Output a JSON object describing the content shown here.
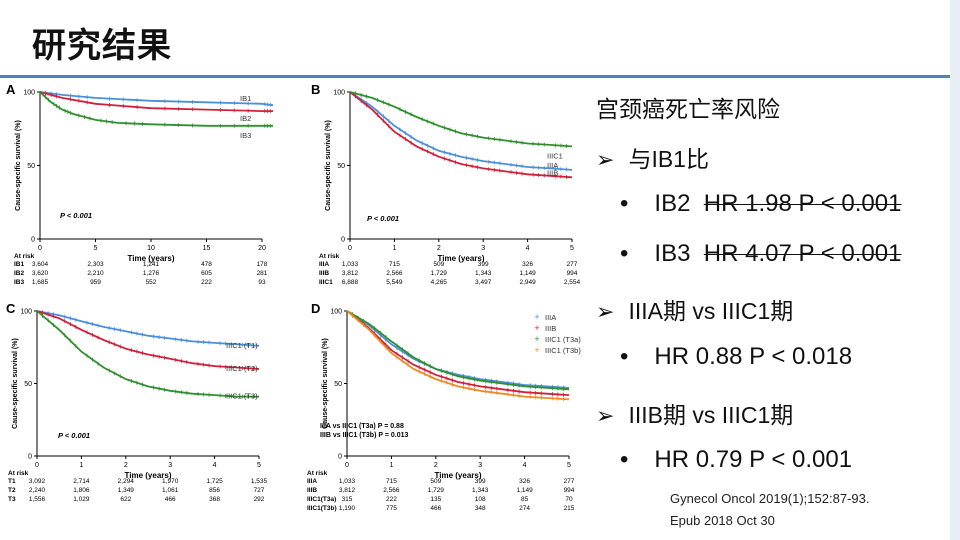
{
  "page_title": "研究结果",
  "right_text": {
    "heading": "宫颈癌死亡率风险",
    "comparisons": [
      {
        "label": "与IB1比",
        "items": [
          {
            "name": "IB2",
            "stat": "HR 1.98  P < 0.001"
          },
          {
            "name": "IB3",
            "stat": "HR 4.07  P < 0.001"
          }
        ]
      },
      {
        "label": "IIIA期 vs IIIC1期",
        "items": [
          {
            "name": "",
            "stat": "HR 0.88  P < 0.018"
          }
        ]
      },
      {
        "label": "IIIB期 vs IIIC1期",
        "items": [
          {
            "name": "",
            "stat": "HR 0.79  P < 0.001"
          }
        ]
      }
    ]
  },
  "citation": {
    "line1": "Gynecol Oncol 2019(1);152:87-93.",
    "line2": "Epub 2018  Oct 30"
  },
  "colors": {
    "blue": "#4a90d9",
    "red": "#d0213c",
    "green": "#2f8f2f",
    "orange": "#f08a24",
    "rule": "#4f81bd"
  },
  "chart_data": [
    {
      "panel": "A",
      "type": "line",
      "ylabel": "Cause-specific survival (%)",
      "xlabel": "Time (years)",
      "xlim": [
        0,
        20
      ],
      "ylim": [
        0,
        100
      ],
      "xticks": [
        0,
        5,
        10,
        15,
        20
      ],
      "yticks": [
        0,
        50,
        100
      ],
      "pvalue": "P < 0.001",
      "series": [
        {
          "name": "IB1",
          "color": "#4a90d9",
          "x": [
            0,
            2,
            5,
            10,
            15,
            20,
            21
          ],
          "y": [
            100,
            98,
            96,
            94,
            93,
            92,
            91
          ]
        },
        {
          "name": "IB2",
          "color": "#d0213c",
          "x": [
            0,
            2,
            5,
            10,
            15,
            20,
            21
          ],
          "y": [
            100,
            96,
            92,
            89,
            88,
            87,
            87
          ]
        },
        {
          "name": "IB3",
          "color": "#2f8f2f",
          "x": [
            0,
            1,
            2,
            3,
            5,
            7,
            10,
            15,
            20,
            21
          ],
          "y": [
            100,
            93,
            88,
            85,
            81,
            79,
            78,
            77,
            77,
            77
          ]
        }
      ],
      "at_risk": {
        "header": "At risk",
        "rows": [
          {
            "label": "IB1",
            "values": [
              "3,604",
              "2,303",
              "1,241",
              "478",
              "178"
            ]
          },
          {
            "label": "IB2",
            "values": [
              "3,620",
              "2,210",
              "1,276",
              "605",
              "281"
            ]
          },
          {
            "label": "IB3",
            "values": [
              "1,685",
              "959",
              "552",
              "222",
              "93"
            ]
          }
        ]
      }
    },
    {
      "panel": "B",
      "type": "line",
      "ylabel": "Cause-specific survival (%)",
      "xlabel": "Time (years)",
      "xlim": [
        0,
        5
      ],
      "ylim": [
        0,
        100
      ],
      "xticks": [
        0,
        1,
        2,
        3,
        4,
        5
      ],
      "yticks": [
        0,
        50,
        100
      ],
      "pvalue": "P < 0.001",
      "series": [
        {
          "name": "IIIA",
          "color": "#4a90d9",
          "x": [
            0,
            0.5,
            1,
            1.5,
            2,
            2.5,
            3,
            3.5,
            4,
            4.5,
            5
          ],
          "y": [
            100,
            90,
            77,
            67,
            60,
            56,
            53,
            51,
            49,
            48,
            47
          ]
        },
        {
          "name": "IIIB",
          "color": "#d0213c",
          "x": [
            0,
            0.5,
            1,
            1.5,
            2,
            2.5,
            3,
            3.5,
            4,
            4.5,
            5
          ],
          "y": [
            100,
            88,
            73,
            63,
            56,
            51,
            48,
            46,
            44,
            43,
            42
          ]
        },
        {
          "name": "IIIC1",
          "color": "#2f8f2f",
          "x": [
            0,
            0.5,
            1,
            1.5,
            2,
            2.5,
            3,
            3.5,
            4,
            4.5,
            5
          ],
          "y": [
            100,
            96,
            90,
            83,
            77,
            72,
            69,
            67,
            65,
            64,
            63
          ]
        }
      ],
      "at_risk": {
        "header": "At risk",
        "rows": [
          {
            "label": "IIIA",
            "values": [
              "1,033",
              "715",
              "509",
              "399",
              "326",
              "277"
            ]
          },
          {
            "label": "IIIB",
            "values": [
              "3,812",
              "2,566",
              "1,729",
              "1,343",
              "1,149",
              "994"
            ]
          },
          {
            "label": "IIIC1",
            "values": [
              "6,888",
              "5,549",
              "4,265",
              "3,497",
              "2,949",
              "2,554"
            ]
          }
        ]
      }
    },
    {
      "panel": "C",
      "type": "line",
      "ylabel": "Cause-specific survival (%)",
      "xlabel": "Time (years)",
      "xlim": [
        0,
        5
      ],
      "ylim": [
        0,
        100
      ],
      "xticks": [
        0,
        1,
        2,
        3,
        4,
        5
      ],
      "yticks": [
        0,
        50,
        100
      ],
      "pvalue": "P < 0.001",
      "series": [
        {
          "name": "IIIC1 (T1)",
          "color": "#4a90d9",
          "x": [
            0,
            0.5,
            1,
            1.5,
            2,
            2.5,
            3,
            3.5,
            4,
            4.5,
            5
          ],
          "y": [
            100,
            97,
            93,
            89,
            86,
            83,
            81,
            79,
            78,
            77,
            76
          ]
        },
        {
          "name": "IIIC1 (T2)",
          "color": "#d0213c",
          "x": [
            0,
            0.5,
            1,
            1.5,
            2,
            2.5,
            3,
            3.5,
            4,
            4.5,
            5
          ],
          "y": [
            100,
            95,
            87,
            80,
            74,
            70,
            67,
            64,
            62,
            61,
            60
          ]
        },
        {
          "name": "IIIC1 (T3)",
          "color": "#2f8f2f",
          "x": [
            0,
            0.5,
            1,
            1.5,
            2,
            2.5,
            3,
            3.5,
            4,
            4.5,
            5
          ],
          "y": [
            100,
            87,
            72,
            61,
            53,
            48,
            45,
            43,
            42,
            41,
            41
          ]
        }
      ],
      "at_risk": {
        "header": "At risk",
        "rows": [
          {
            "label": "T1",
            "values": [
              "3,092",
              "2,714",
              "2,294",
              "1,970",
              "1,725",
              "1,535"
            ]
          },
          {
            "label": "T2",
            "values": [
              "2,240",
              "1,806",
              "1,349",
              "1,061",
              "856",
              "727"
            ]
          },
          {
            "label": "T3",
            "values": [
              "1,556",
              "1,029",
              "622",
              "466",
              "368",
              "292"
            ]
          }
        ]
      }
    },
    {
      "panel": "D",
      "type": "line",
      "ylabel": "Cause-specific survival (%)",
      "xlabel": "Time (years)",
      "xlim": [
        0,
        5
      ],
      "ylim": [
        0,
        100
      ],
      "xticks": [
        0,
        1,
        2,
        3,
        4,
        5
      ],
      "yticks": [
        0,
        50,
        100
      ],
      "annotations": [
        "IIIA vs IIIC1 (T3a) P = 0.88",
        "IIIB vs IIIC1 (T3b) P = 0.013"
      ],
      "legend_position": "top-right",
      "series": [
        {
          "name": "IIIA",
          "color": "#4a90d9",
          "x": [
            0,
            0.5,
            1,
            1.5,
            2,
            2.5,
            3,
            3.5,
            4,
            4.5,
            5
          ],
          "y": [
            100,
            90,
            77,
            67,
            60,
            56,
            53,
            51,
            49,
            48,
            47
          ]
        },
        {
          "name": "IIIB",
          "color": "#d0213c",
          "x": [
            0,
            0.5,
            1,
            1.5,
            2,
            2.5,
            3,
            3.5,
            4,
            4.5,
            5
          ],
          "y": [
            100,
            88,
            73,
            63,
            56,
            51,
            48,
            46,
            44,
            43,
            42
          ]
        },
        {
          "name": "IIIC1 (T3a)",
          "color": "#2f8f2f",
          "x": [
            0,
            0.5,
            1,
            1.5,
            2,
            2.5,
            3,
            3.5,
            4,
            4.5,
            5
          ],
          "y": [
            100,
            91,
            79,
            68,
            60,
            55,
            52,
            50,
            48,
            47,
            46
          ]
        },
        {
          "name": "IIIC1 (T3b)",
          "color": "#f08a24",
          "x": [
            0,
            0.5,
            1,
            1.5,
            2,
            2.5,
            3,
            3.5,
            4,
            4.5,
            5
          ],
          "y": [
            100,
            87,
            71,
            60,
            53,
            48,
            45,
            43,
            41,
            40,
            39
          ]
        }
      ],
      "at_risk": {
        "header": "At risk",
        "rows": [
          {
            "label": "IIIA",
            "values": [
              "1,033",
              "715",
              "509",
              "399",
              "326",
              "277"
            ]
          },
          {
            "label": "IIIB",
            "values": [
              "3,812",
              "2,566",
              "1,729",
              "1,343",
              "1,149",
              "994"
            ]
          },
          {
            "label": "IIIC1(T3a)",
            "values": [
              "315",
              "222",
              "135",
              "108",
              "85",
              "70"
            ]
          },
          {
            "label": "IIIC1(T3b)",
            "values": [
              "1,190",
              "775",
              "466",
              "348",
              "274",
              "215"
            ]
          }
        ]
      }
    }
  ]
}
